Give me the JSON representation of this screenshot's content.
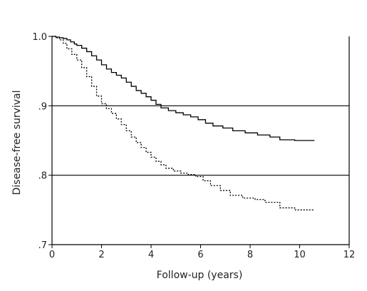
{
  "chart_data": {
    "type": "line",
    "title": "",
    "xlabel": "Follow-up (years)",
    "ylabel": "Disease-free survival",
    "xlim": [
      0,
      12
    ],
    "ylim": [
      0.7,
      1.0
    ],
    "x_ticks": [
      0,
      2,
      4,
      6,
      8,
      10,
      12
    ],
    "x_tick_labels": [
      "0",
      "2",
      "4",
      "6",
      "8",
      "10",
      "12"
    ],
    "y_ticks": [
      0.7,
      0.8,
      0.9,
      1.0
    ],
    "y_tick_labels": [
      ".7",
      ".8",
      ".9",
      "1.0"
    ],
    "grid_lines_y": [
      0.8,
      0.9
    ],
    "series": [
      {
        "style": "solid",
        "color": "#000000",
        "points": [
          [
            0,
            1.0
          ],
          [
            0.15,
            0.999
          ],
          [
            0.3,
            0.998
          ],
          [
            0.45,
            0.997
          ],
          [
            0.6,
            0.995
          ],
          [
            0.75,
            0.992
          ],
          [
            0.9,
            0.989
          ],
          [
            1.0,
            0.987
          ],
          [
            1.2,
            0.983
          ],
          [
            1.4,
            0.978
          ],
          [
            1.6,
            0.972
          ],
          [
            1.8,
            0.966
          ],
          [
            2.0,
            0.959
          ],
          [
            2.2,
            0.953
          ],
          [
            2.4,
            0.948
          ],
          [
            2.6,
            0.944
          ],
          [
            2.8,
            0.94
          ],
          [
            3.0,
            0.934
          ],
          [
            3.2,
            0.928
          ],
          [
            3.4,
            0.922
          ],
          [
            3.6,
            0.918
          ],
          [
            3.8,
            0.913
          ],
          [
            4.0,
            0.908
          ],
          [
            4.2,
            0.902
          ],
          [
            4.4,
            0.897
          ],
          [
            4.7,
            0.893
          ],
          [
            5.0,
            0.89
          ],
          [
            5.3,
            0.887
          ],
          [
            5.6,
            0.884
          ],
          [
            5.9,
            0.88
          ],
          [
            6.2,
            0.875
          ],
          [
            6.5,
            0.871
          ],
          [
            6.9,
            0.868
          ],
          [
            7.3,
            0.864
          ],
          [
            7.8,
            0.861
          ],
          [
            8.3,
            0.858
          ],
          [
            8.8,
            0.855
          ],
          [
            9.2,
            0.851
          ],
          [
            9.8,
            0.85
          ],
          [
            10.6,
            0.85
          ]
        ]
      },
      {
        "style": "dotted",
        "color": "#000000",
        "points": [
          [
            0,
            1.0
          ],
          [
            0.15,
            0.998
          ],
          [
            0.3,
            0.995
          ],
          [
            0.45,
            0.99
          ],
          [
            0.6,
            0.982
          ],
          [
            0.8,
            0.974
          ],
          [
            1.0,
            0.966
          ],
          [
            1.2,
            0.955
          ],
          [
            1.4,
            0.942
          ],
          [
            1.6,
            0.928
          ],
          [
            1.8,
            0.914
          ],
          [
            2.0,
            0.903
          ],
          [
            2.2,
            0.896
          ],
          [
            2.4,
            0.889
          ],
          [
            2.6,
            0.881
          ],
          [
            2.8,
            0.873
          ],
          [
            3.0,
            0.864
          ],
          [
            3.2,
            0.855
          ],
          [
            3.4,
            0.847
          ],
          [
            3.6,
            0.84
          ],
          [
            3.8,
            0.833
          ],
          [
            4.0,
            0.826
          ],
          [
            4.2,
            0.82
          ],
          [
            4.4,
            0.815
          ],
          [
            4.6,
            0.81
          ],
          [
            4.9,
            0.806
          ],
          [
            5.2,
            0.803
          ],
          [
            5.5,
            0.801
          ],
          [
            5.8,
            0.798
          ],
          [
            6.1,
            0.792
          ],
          [
            6.4,
            0.785
          ],
          [
            6.8,
            0.778
          ],
          [
            7.2,
            0.771
          ],
          [
            7.7,
            0.767
          ],
          [
            8.2,
            0.765
          ],
          [
            8.6,
            0.761
          ],
          [
            9.2,
            0.753
          ],
          [
            9.8,
            0.75
          ],
          [
            10.6,
            0.75
          ]
        ]
      }
    ]
  }
}
